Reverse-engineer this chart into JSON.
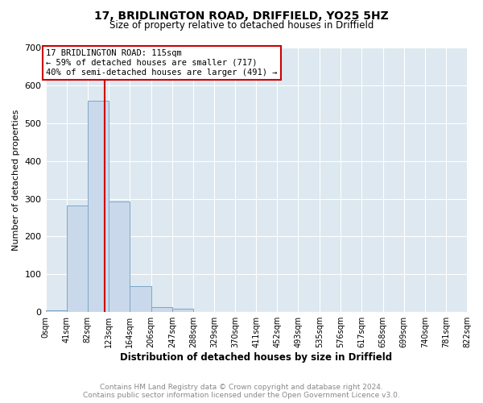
{
  "title": "17, BRIDLINGTON ROAD, DRIFFIELD, YO25 5HZ",
  "subtitle": "Size of property relative to detached houses in Driffield",
  "xlabel": "Distribution of detached houses by size in Driffield",
  "ylabel": "Number of detached properties",
  "bin_edges": [
    0,
    41,
    82,
    123,
    164,
    206,
    247,
    288,
    329,
    370,
    411,
    452,
    493,
    535,
    576,
    617,
    658,
    699,
    740,
    781,
    822
  ],
  "bin_labels": [
    "0sqm",
    "41sqm",
    "82sqm",
    "123sqm",
    "164sqm",
    "206sqm",
    "247sqm",
    "288sqm",
    "329sqm",
    "370sqm",
    "411sqm",
    "452sqm",
    "493sqm",
    "535sqm",
    "576sqm",
    "617sqm",
    "658sqm",
    "699sqm",
    "740sqm",
    "781sqm",
    "822sqm"
  ],
  "bar_heights": [
    5,
    283,
    560,
    293,
    68,
    13,
    8,
    0,
    0,
    0,
    0,
    0,
    0,
    0,
    0,
    0,
    0,
    0,
    0,
    0
  ],
  "bar_color": "#c9d9eb",
  "bar_edge_color": "#7ba7c7",
  "ylim": [
    0,
    700
  ],
  "yticks": [
    0,
    100,
    200,
    300,
    400,
    500,
    600,
    700
  ],
  "vline_x": 115,
  "vline_color": "#cc0000",
  "annotation_line1": "17 BRIDLINGTON ROAD: 115sqm",
  "annotation_line2": "← 59% of detached houses are smaller (717)",
  "annotation_line3": "40% of semi-detached houses are larger (491) →",
  "annotation_box_edge_color": "#cc0000",
  "annotation_box_face_color": "#ffffff",
  "footer_line1": "Contains HM Land Registry data © Crown copyright and database right 2024.",
  "footer_line2": "Contains public sector information licensed under the Open Government Licence v3.0.",
  "fig_bg_color": "#ffffff",
  "plot_bg_color": "#dde8f0",
  "grid_color": "#ffffff",
  "title_color": "#000000",
  "footer_color": "#888888"
}
